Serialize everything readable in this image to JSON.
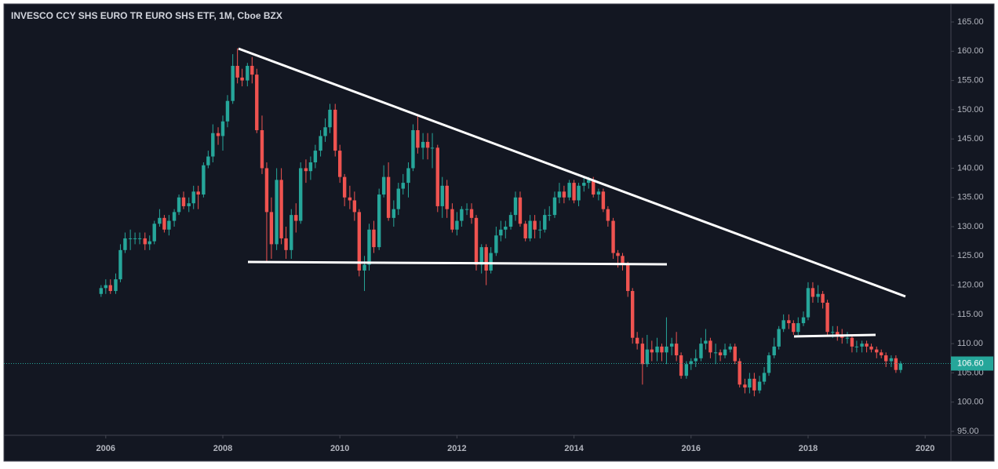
{
  "chart_data": {
    "type": "candlestick",
    "title": "INVESCO CCY SHS EURO TR EURO SHS ETF, 1M, Cboe BZX",
    "up_color": "#26a69a",
    "down_color": "#ef5350",
    "xlim": [
      2004.26,
      2020.44
    ],
    "ylim": [
      94.33,
      168.09
    ],
    "xticks": [
      2006,
      2008,
      2010,
      2012,
      2014,
      2016,
      2018,
      2020
    ],
    "yticks": [
      {
        "value": 95,
        "label": "95.00"
      },
      {
        "value": 100,
        "label": "100.00"
      },
      {
        "value": 105,
        "label": "105.00"
      },
      {
        "value": 110,
        "label": "110.00"
      },
      {
        "value": 115,
        "label": "115.00"
      },
      {
        "value": 120,
        "label": "120.00"
      },
      {
        "value": 125,
        "label": "125.00"
      },
      {
        "value": 130,
        "label": "130.00"
      },
      {
        "value": 135,
        "label": "135.00"
      },
      {
        "value": 140,
        "label": "140.00"
      },
      {
        "value": 145,
        "label": "145.00"
      },
      {
        "value": 150,
        "label": "150.00"
      },
      {
        "value": 155,
        "label": "155.00"
      },
      {
        "value": 160,
        "label": "160.00"
      },
      {
        "value": 165,
        "label": "165.00"
      }
    ],
    "last_price": {
      "value": 106.6,
      "label": "106.60"
    },
    "x": [
      2005.92,
      2006,
      2006.08,
      2006.17,
      2006.25,
      2006.33,
      2006.42,
      2006.5,
      2006.58,
      2006.67,
      2006.75,
      2006.83,
      2006.92,
      2007,
      2007.08,
      2007.17,
      2007.25,
      2007.33,
      2007.42,
      2007.5,
      2007.58,
      2007.67,
      2007.75,
      2007.83,
      2007.92,
      2008,
      2008.08,
      2008.17,
      2008.25,
      2008.33,
      2008.42,
      2008.5,
      2008.58,
      2008.67,
      2008.75,
      2008.83,
      2008.92,
      2009,
      2009.08,
      2009.17,
      2009.25,
      2009.33,
      2009.42,
      2009.5,
      2009.58,
      2009.67,
      2009.75,
      2009.83,
      2009.92,
      2010,
      2010.08,
      2010.17,
      2010.25,
      2010.33,
      2010.42,
      2010.5,
      2010.58,
      2010.67,
      2010.75,
      2010.83,
      2010.92,
      2011,
      2011.08,
      2011.17,
      2011.25,
      2011.33,
      2011.42,
      2011.5,
      2011.58,
      2011.67,
      2011.75,
      2011.83,
      2011.92,
      2012,
      2012.08,
      2012.17,
      2012.25,
      2012.33,
      2012.42,
      2012.5,
      2012.58,
      2012.67,
      2012.75,
      2012.83,
      2012.92,
      2013,
      2013.08,
      2013.17,
      2013.25,
      2013.33,
      2013.42,
      2013.5,
      2013.58,
      2013.67,
      2013.75,
      2013.83,
      2013.92,
      2014,
      2014.08,
      2014.17,
      2014.25,
      2014.33,
      2014.42,
      2014.5,
      2014.58,
      2014.67,
      2014.75,
      2014.83,
      2014.92,
      2015,
      2015.08,
      2015.17,
      2015.25,
      2015.33,
      2015.42,
      2015.5,
      2015.58,
      2015.67,
      2015.75,
      2015.83,
      2015.92,
      2016,
      2016.08,
      2016.17,
      2016.25,
      2016.33,
      2016.42,
      2016.5,
      2016.58,
      2016.67,
      2016.75,
      2016.83,
      2016.92,
      2017,
      2017.08,
      2017.17,
      2017.25,
      2017.33,
      2017.42,
      2017.5,
      2017.58,
      2017.67,
      2017.75,
      2017.83,
      2017.92,
      2018,
      2018.08,
      2018.17,
      2018.25,
      2018.33,
      2018.42,
      2018.5,
      2018.58,
      2018.67,
      2018.75,
      2018.83,
      2018.92,
      2019,
      2019.08,
      2019.17,
      2019.25,
      2019.33,
      2019.42,
      2019.5,
      2019.58
    ],
    "open": [
      118.5,
      119.5,
      120,
      119,
      121,
      126,
      128,
      128,
      128,
      128,
      127,
      127.5,
      130.5,
      131.5,
      129.5,
      131,
      132.5,
      135,
      133.5,
      134,
      136,
      135.5,
      140.5,
      142,
      146,
      145.5,
      148,
      151.5,
      157.5,
      155.5,
      155,
      157.5,
      156,
      146.5,
      140,
      132.5,
      127,
      138,
      128,
      126,
      132,
      131,
      140,
      139.5,
      141,
      143,
      145.5,
      147,
      150,
      143,
      138.5,
      135,
      134.5,
      132.5,
      122.5,
      123.5,
      129.5,
      126.5,
      135.5,
      138.5,
      131.5,
      133,
      136.5,
      137.5,
      140,
      146.5,
      143.5,
      144.5,
      143.5,
      143.5,
      133.5,
      137,
      133,
      129.5,
      131,
      133,
      133,
      131.5,
      123.5,
      126.5,
      122.5,
      125.5,
      128.5,
      129.5,
      130,
      132,
      135,
      130.5,
      128,
      131,
      129.5,
      129.5,
      132,
      132,
      135,
      136,
      135,
      137.5,
      134.5,
      137,
      137.5,
      138,
      135.5,
      136,
      133,
      131,
      125.5,
      125,
      123.5,
      119,
      111,
      110,
      106.5,
      109,
      108.5,
      109.5,
      108.5,
      109.5,
      110,
      108,
      104.5,
      106.5,
      107,
      107.5,
      110,
      110.5,
      108.5,
      108.5,
      108,
      109,
      109.5,
      107,
      103,
      102.5,
      104,
      102,
      103.5,
      105,
      108,
      109.5,
      112.5,
      114,
      113.5,
      112,
      113.5,
      114.5,
      119.5,
      118,
      118.5,
      117,
      112,
      112,
      111.5,
      111,
      111,
      109.5,
      109.5,
      110,
      109.5,
      109,
      108.5,
      108,
      107,
      107.5,
      105.5
    ],
    "high": [
      120,
      121,
      121,
      122,
      127,
      129,
      129.5,
      129,
      129,
      129,
      128.5,
      131,
      133,
      132,
      132,
      133,
      135.5,
      136,
      135,
      137,
      137,
      141,
      143,
      147.5,
      147,
      149,
      152.5,
      159.5,
      160.5,
      157,
      158,
      159,
      157,
      149,
      141,
      135,
      140,
      140,
      130,
      133,
      134,
      141,
      141.5,
      142,
      144,
      146.5,
      148.5,
      151,
      151,
      144,
      139,
      137,
      136,
      133,
      125,
      130.5,
      131,
      136.5,
      140.5,
      141,
      134.5,
      137.5,
      139,
      141,
      147.5,
      149,
      146,
      146,
      146,
      144,
      138.5,
      138,
      134,
      132.5,
      133.5,
      134,
      134,
      132,
      127,
      127,
      126.5,
      130,
      131,
      131,
      132.5,
      136,
      136,
      131,
      132,
      132,
      131,
      133,
      133.5,
      136,
      137.5,
      137,
      138,
      138,
      137.5,
      138.5,
      138.5,
      138.5,
      136.5,
      136.5,
      133.5,
      131.5,
      126,
      125.5,
      124,
      119.5,
      112,
      111,
      111.5,
      110.5,
      111,
      110,
      114.5,
      111,
      112,
      108.5,
      107,
      107.5,
      109,
      111,
      112.5,
      111,
      110,
      109,
      110,
      110,
      110,
      107.5,
      104,
      105,
      105,
      104.5,
      106,
      108.5,
      111,
      113,
      115,
      115,
      114,
      114.5,
      115.5,
      120.5,
      120.5,
      120,
      119,
      117.5,
      113,
      113,
      112.5,
      112,
      111.5,
      110.5,
      110.5,
      110.5,
      110,
      109.5,
      109,
      108.5,
      108,
      108,
      107
    ],
    "low": [
      118,
      118.5,
      118.5,
      118.5,
      120.5,
      125.5,
      126,
      127,
      127,
      126,
      126,
      127,
      130,
      129,
      128.5,
      130,
      132,
      133,
      132.5,
      133,
      133,
      135,
      140,
      141,
      144,
      143,
      147,
      151,
      154.5,
      154,
      154,
      154.5,
      146,
      139,
      124,
      124.5,
      126,
      127,
      124.5,
      124.5,
      129,
      130.5,
      137.5,
      138,
      140,
      142,
      144.5,
      146,
      142,
      137.5,
      133.5,
      133,
      131,
      121.5,
      119,
      122.5,
      125.5,
      126,
      135,
      131,
      130,
      132,
      135.5,
      135,
      139.5,
      142.5,
      141.5,
      141.5,
      140,
      132.5,
      131.5,
      131.5,
      129,
      128.5,
      130,
      132,
      130.5,
      122.5,
      122,
      120,
      122,
      125,
      127.5,
      128,
      129.5,
      131,
      130,
      127.5,
      127.5,
      128,
      128,
      129,
      131,
      131.5,
      134,
      134,
      134.5,
      134,
      133.5,
      136,
      136.5,
      135,
      134.5,
      132.5,
      130,
      124.5,
      123,
      122.5,
      118,
      110,
      109,
      103,
      106,
      107,
      107,
      107,
      106.5,
      108,
      107,
      104,
      104,
      105.5,
      106,
      107,
      109,
      107.5,
      106.5,
      107,
      107.5,
      108.5,
      106.5,
      102.5,
      101.5,
      101.5,
      101,
      101.5,
      103,
      104.5,
      107.5,
      109,
      112,
      112.5,
      111.5,
      111.5,
      113,
      114,
      117,
      117,
      116,
      111.5,
      111,
      110.5,
      110,
      110,
      108.5,
      108.5,
      108.5,
      108.5,
      108.5,
      107.5,
      107.5,
      106,
      106,
      105,
      105
    ],
    "close": [
      119.5,
      120,
      119,
      121,
      126,
      128,
      128,
      128,
      128,
      127,
      127.5,
      130.5,
      131.5,
      129.5,
      131,
      132.5,
      135,
      133.5,
      134,
      136,
      135.5,
      140.5,
      142,
      146,
      145.5,
      148,
      151.5,
      157.5,
      155.5,
      155,
      157.5,
      156,
      146.5,
      140,
      132.5,
      127,
      138,
      128,
      126,
      132,
      131,
      140,
      139.5,
      141,
      143,
      145.5,
      147,
      150,
      143,
      138.5,
      135,
      134.5,
      132.5,
      122.5,
      123.5,
      129.5,
      126.5,
      135.5,
      138.5,
      131.5,
      133,
      136.5,
      137.5,
      140,
      146.5,
      143.5,
      144.5,
      143.5,
      143.5,
      133.5,
      137,
      133,
      129.5,
      131,
      133,
      133,
      131.5,
      123.5,
      126.5,
      122.5,
      125.5,
      128.5,
      129.5,
      130,
      132,
      135,
      130.5,
      128,
      131,
      129.5,
      129.5,
      132,
      132,
      135,
      136,
      135,
      137.5,
      134.5,
      137,
      137.5,
      138,
      135.5,
      136,
      133,
      131,
      125.5,
      125,
      123.5,
      119,
      111,
      110,
      106.5,
      109,
      108.5,
      109.5,
      108.5,
      109.5,
      110,
      108,
      104.5,
      106.5,
      107,
      107.5,
      110,
      110.5,
      108.5,
      108.5,
      108,
      109,
      109.5,
      107,
      103,
      102.5,
      104,
      102,
      103.5,
      105,
      108,
      109.5,
      112.5,
      114,
      113.5,
      112,
      113.5,
      114.5,
      119.5,
      118,
      118.5,
      117,
      112,
      112,
      111.5,
      111,
      111,
      109.5,
      109.5,
      110,
      109.5,
      109,
      108.5,
      108,
      107,
      107.5,
      105.5,
      106.6
    ]
  }
}
